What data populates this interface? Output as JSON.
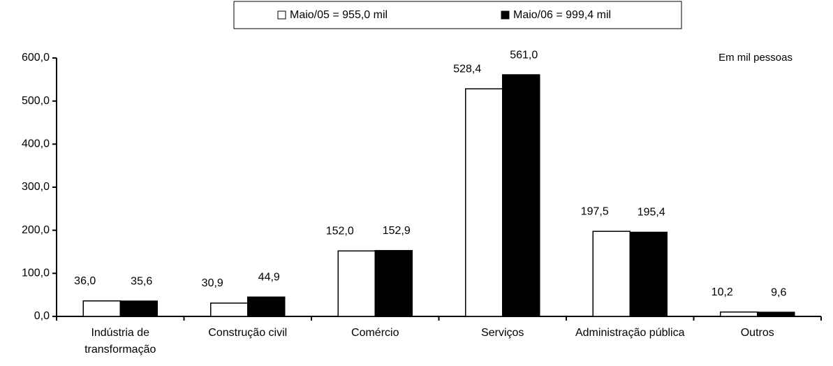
{
  "chart_data": {
    "type": "bar",
    "annotation": "Em mil pessoas",
    "categories": [
      "Indústria de transformação",
      "Construção civil",
      "Comércio",
      "Serviços",
      "Administração pública",
      "Outros"
    ],
    "series": [
      {
        "name": "Maio/05 = 955,0 mil",
        "color": "#ffffff",
        "values": [
          36.0,
          30.9,
          152.0,
          528.4,
          197.5,
          10.2
        ],
        "value_labels": [
          "36,0",
          "30,9",
          "152,0",
          "528,4",
          "197,5",
          "10,2"
        ]
      },
      {
        "name": "Maio/06 = 999,4 mil",
        "color": "#000000",
        "values": [
          35.6,
          44.9,
          152.9,
          561.0,
          195.4,
          9.6
        ],
        "value_labels": [
          "35,6",
          "44,9",
          "152,9",
          "561,0",
          "195,4",
          "9,6"
        ]
      }
    ],
    "ylim": [
      0,
      600
    ],
    "yticks": [
      {
        "value": 0,
        "label": "0,0"
      },
      {
        "value": 100,
        "label": "100,0"
      },
      {
        "value": 200,
        "label": "200,0"
      },
      {
        "value": 300,
        "label": "300,0"
      },
      {
        "value": 400,
        "label": "400,0"
      },
      {
        "value": 500,
        "label": "500,0"
      },
      {
        "value": 600,
        "label": "600,0"
      }
    ],
    "legend": "top"
  }
}
